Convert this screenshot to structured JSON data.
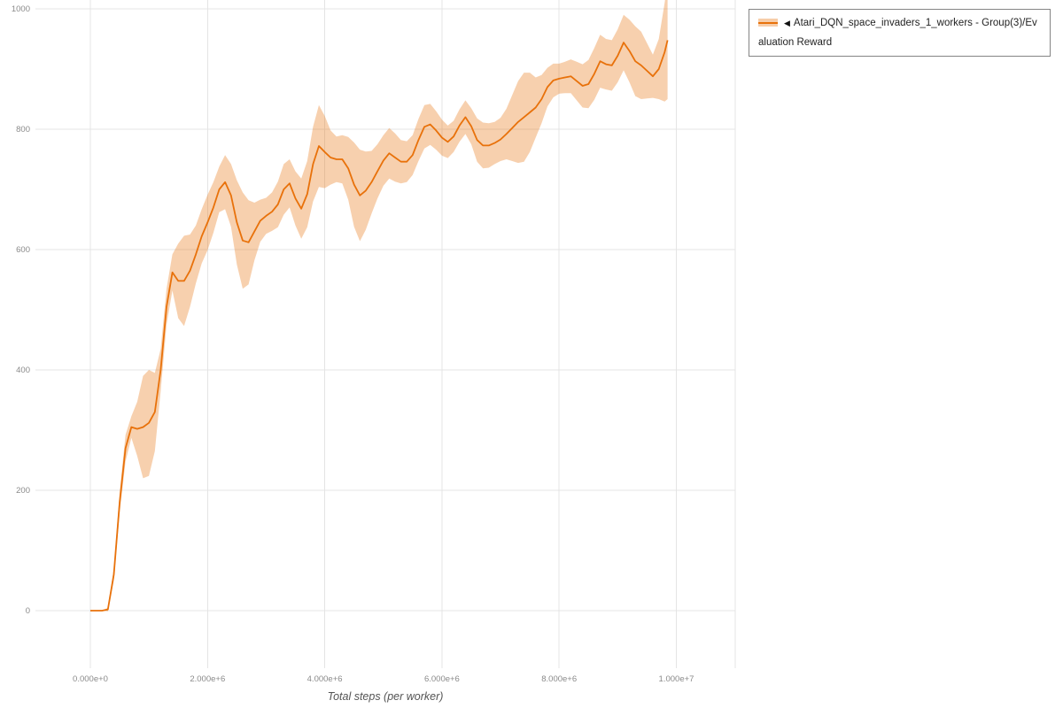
{
  "legend": {
    "caret": "◀",
    "series_label": "Atari_DQN_space_invaders_1_workers - Group(3)/Evaluation Reward"
  },
  "chart_data": {
    "type": "line",
    "title": "",
    "xlabel": "Total steps (per worker)",
    "ylabel": "",
    "grid": true,
    "legend_position": "top-right",
    "x_axis": {
      "range": [
        0,
        10000000
      ],
      "ticks": [
        {
          "value": 0,
          "label": "0.000e+0"
        },
        {
          "value": 2000000,
          "label": "2.000e+6"
        },
        {
          "value": 4000000,
          "label": "4.000e+6"
        },
        {
          "value": 6000000,
          "label": "6.000e+6"
        },
        {
          "value": 8000000,
          "label": "8.000e+6"
        },
        {
          "value": 10000000,
          "label": "1.000e+7"
        }
      ]
    },
    "y_axis": {
      "range": [
        0,
        1000
      ],
      "ticks": [
        {
          "value": 0,
          "label": "0"
        },
        {
          "value": 200,
          "label": "200"
        },
        {
          "value": 400,
          "label": "400"
        },
        {
          "value": 600,
          "label": "600"
        },
        {
          "value": 800,
          "label": "800"
        },
        {
          "value": 1000,
          "label": "1000"
        }
      ]
    },
    "series": [
      {
        "name": "Atari_DQN_space_invaders_1_workers - Group(3)/Evaluation Reward",
        "color": "#e8710a",
        "band_meaning": "mean ± spread (shaded)",
        "x": [
          0,
          100000,
          200000,
          300000,
          400000,
          500000,
          600000,
          700000,
          800000,
          900000,
          1000000,
          1100000,
          1200000,
          1300000,
          1400000,
          1500000,
          1600000,
          1700000,
          1800000,
          1900000,
          2000000,
          2100000,
          2200000,
          2300000,
          2400000,
          2500000,
          2600000,
          2700000,
          2800000,
          2900000,
          3000000,
          3100000,
          3200000,
          3300000,
          3400000,
          3500000,
          3600000,
          3700000,
          3800000,
          3900000,
          4000000,
          4100000,
          4200000,
          4300000,
          4400000,
          4500000,
          4600000,
          4700000,
          4800000,
          4900000,
          5000000,
          5100000,
          5200000,
          5300000,
          5400000,
          5500000,
          5600000,
          5700000,
          5800000,
          5900000,
          6000000,
          6100000,
          6200000,
          6300000,
          6400000,
          6500000,
          6600000,
          6700000,
          6800000,
          6900000,
          7000000,
          7100000,
          7200000,
          7300000,
          7400000,
          7500000,
          7600000,
          7700000,
          7800000,
          7900000,
          8000000,
          8100000,
          8200000,
          8300000,
          8400000,
          8500000,
          8600000,
          8700000,
          8800000,
          8900000,
          9000000,
          9100000,
          9200000,
          9300000,
          9400000,
          9500000,
          9600000,
          9700000,
          9800000,
          9850000
        ],
        "mean": [
          0,
          0,
          0,
          2,
          60,
          180,
          270,
          305,
          302,
          305,
          312,
          330,
          400,
          505,
          562,
          548,
          548,
          565,
          592,
          622,
          645,
          670,
          700,
          712,
          690,
          645,
          615,
          612,
          630,
          648,
          656,
          663,
          675,
          700,
          710,
          685,
          668,
          692,
          742,
          772,
          762,
          753,
          750,
          750,
          735,
          708,
          690,
          698,
          712,
          730,
          748,
          760,
          753,
          746,
          746,
          757,
          782,
          804,
          808,
          798,
          786,
          779,
          788,
          806,
          820,
          805,
          782,
          773,
          773,
          777,
          783,
          792,
          802,
          812,
          820,
          828,
          836,
          850,
          870,
          881,
          884,
          886,
          888,
          880,
          872,
          875,
          892,
          913,
          908,
          906,
          922,
          944,
          930,
          913,
          906,
          897,
          888,
          900,
          928,
          948
        ],
        "band_halfwidth": [
          0,
          0,
          0,
          3,
          10,
          18,
          22,
          18,
          45,
          85,
          88,
          65,
          35,
          30,
          30,
          62,
          75,
          60,
          48,
          45,
          46,
          42,
          38,
          45,
          52,
          70,
          80,
          70,
          48,
          35,
          30,
          32,
          38,
          42,
          40,
          45,
          50,
          55,
          62,
          68,
          60,
          45,
          38,
          40,
          52,
          70,
          76,
          65,
          52,
          45,
          42,
          42,
          40,
          36,
          34,
          33,
          35,
          36,
          34,
          32,
          30,
          27,
          26,
          27,
          28,
          30,
          36,
          38,
          37,
          35,
          36,
          42,
          55,
          68,
          74,
          66,
          50,
          40,
          32,
          28,
          25,
          26,
          28,
          32,
          36,
          40,
          43,
          44,
          42,
          42,
          44,
          46,
          52,
          58,
          56,
          46,
          36,
          50,
          82,
          98
        ]
      }
    ]
  }
}
